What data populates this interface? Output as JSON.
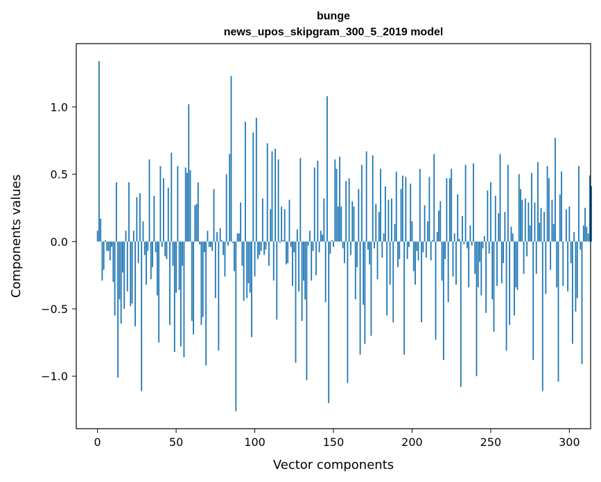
{
  "chart_data": {
    "type": "bar",
    "title": "bunge",
    "subtitle": "news_upos_skipgram_300_5_2019 model",
    "xlabel": "Vector components",
    "ylabel": "Components values",
    "xlim": [
      -13.5,
      313.5
    ],
    "ylim": [
      -1.39,
      1.47
    ],
    "xticks": [
      0,
      50,
      100,
      150,
      200,
      250,
      300
    ],
    "xtick_labels": [
      "0",
      "50",
      "100",
      "150",
      "200",
      "250",
      "300"
    ],
    "yticks": [
      -1.0,
      -0.5,
      0.0,
      0.5,
      1.0
    ],
    "ytick_labels": [
      "−1.0",
      "−0.5",
      "0.0",
      "0.5",
      "1.0"
    ],
    "bar_color": "#1f77b4",
    "grid": false,
    "values": [
      0.08,
      1.34,
      0.17,
      -0.29,
      -0.21,
      0.01,
      -0.07,
      -0.07,
      -0.14,
      -0.04,
      -0.3,
      -0.55,
      0.44,
      -1.01,
      -0.43,
      -0.61,
      -0.23,
      -0.5,
      0.08,
      -0.37,
      0.44,
      -0.48,
      -0.46,
      0.08,
      -0.63,
      0.33,
      -0.16,
      0.36,
      -1.11,
      0.15,
      -0.1,
      -0.32,
      -0.07,
      0.61,
      -0.28,
      -0.19,
      0.34,
      -0.08,
      -0.4,
      -0.75,
      0.56,
      -0.04,
      0.47,
      -0.11,
      -0.13,
      0.4,
      -0.62,
      0.66,
      -0.18,
      -0.82,
      -0.38,
      0.56,
      -0.36,
      -0.78,
      -0.18,
      -0.86,
      0.55,
      0.51,
      1.02,
      0.53,
      -0.59,
      -0.69,
      0.27,
      0.28,
      0.44,
      -0.02,
      -0.62,
      -0.56,
      -0.08,
      -0.92,
      0.08,
      -0.04,
      -0.04,
      -0.07,
      0.39,
      -0.42,
      0.07,
      -0.81,
      0.1,
      0.01,
      -0.1,
      -0.26,
      0.5,
      -0.03,
      0.65,
      1.23,
      -0.01,
      -0.22,
      -1.26,
      0.06,
      0.06,
      0.29,
      -0.18,
      -0.44,
      0.89,
      -0.42,
      -0.31,
      -0.38,
      -0.71,
      0.81,
      -0.26,
      0.92,
      -0.13,
      -0.1,
      -0.07,
      0.32,
      -0.1,
      -0.06,
      0.73,
      -0.18,
      0.24,
      0.67,
      -0.29,
      0.69,
      -0.58,
      0.61,
      -0.01,
      0.26,
      0.01,
      0.24,
      -0.17,
      -0.16,
      0.31,
      -0.04,
      -0.33,
      -0.08,
      -0.9,
      0.09,
      -0.37,
      0.62,
      -0.59,
      -0.29,
      -0.43,
      -1.03,
      -0.03,
      0.08,
      -0.29,
      -0.07,
      0.55,
      -0.25,
      0.6,
      -0.08,
      0.08,
      0.05,
      0.32,
      -0.45,
      1.08,
      -1.2,
      -0.09,
      0.01,
      -0.04,
      0.61,
      0.54,
      0.26,
      0.63,
      0.26,
      -0.05,
      -0.16,
      0.45,
      -1.05,
      0.47,
      -0.1,
      0.3,
      0.26,
      -0.43,
      -0.19,
      0.39,
      -0.84,
      0.57,
      -0.47,
      -0.76,
      0.67,
      -0.06,
      -0.17,
      -0.7,
      0.64,
      -0.05,
      0.28,
      -0.28,
      0.22,
      0.54,
      -0.12,
      0.06,
      0.41,
      -0.55,
      0.31,
      -0.32,
      0.32,
      -0.6,
      0.13,
      0.52,
      -0.19,
      -0.13,
      0.39,
      0.49,
      -0.84,
      0.48,
      -0.13,
      -0.04,
      0.43,
      0.15,
      -0.22,
      -0.32,
      -0.07,
      -0.14,
      0.54,
      -0.6,
      -0.08,
      0.27,
      -0.12,
      0.15,
      0.48,
      -0.14,
      0.01,
      0.65,
      -0.73,
      0.07,
      0.23,
      0.3,
      -0.29,
      -0.88,
      -0.13,
      0.47,
      -0.45,
      0.47,
      0.54,
      -0.26,
      0.06,
      -0.32,
      0.35,
      0.02,
      -1.08,
      0.19,
      -0.02,
      0.57,
      -0.05,
      -0.34,
      0.12,
      -0.03,
      0.58,
      -0.24,
      -1.0,
      -0.34,
      -0.15,
      -0.4,
      -0.05,
      0.04,
      -0.53,
      0.38,
      -0.09,
      0.44,
      -0.43,
      -0.67,
      0.34,
      -0.33,
      0.21,
      0.65,
      -0.31,
      -0.16,
      0.22,
      -0.81,
      0.57,
      -0.62,
      0.11,
      0.06,
      -0.55,
      -0.34,
      -0.36,
      0.5,
      0.39,
      0.31,
      -0.24,
      0.32,
      -0.11,
      0.29,
      0.12,
      0.51,
      -0.88,
      0.29,
      -0.24,
      0.59,
      0.14,
      0.25,
      -1.11,
      0.22,
      -0.39,
      0.56,
      0.47,
      -0.21,
      0.31,
      0.13,
      0.77,
      -0.34,
      -1.04,
      0.35,
      0.52,
      -0.33,
      0.0,
      0.24,
      -0.37,
      0.26,
      -0.16,
      -0.76,
      0.07,
      -0.52,
      -0.42,
      0.56,
      -0.06,
      -0.91,
      0.12,
      0.25,
      0.11,
      0.06,
      0.49,
      0.41
    ]
  }
}
